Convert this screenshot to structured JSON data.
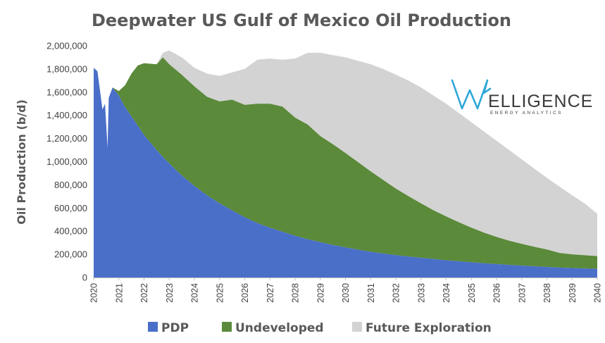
{
  "chart_data": {
    "type": "area",
    "stacked": true,
    "title": "Deepwater US Gulf of Mexico Oil Production",
    "xlabel": "",
    "ylabel": "Oil Production (b/d)",
    "xlim": [
      2020,
      2040
    ],
    "ylim": [
      0,
      2000000
    ],
    "yticks": [
      0,
      200000,
      400000,
      600000,
      800000,
      1000000,
      1200000,
      1400000,
      1600000,
      1800000,
      2000000
    ],
    "ytick_labels": [
      "0",
      "200,000",
      "400,000",
      "600,000",
      "800,000",
      "1,000,000",
      "1,200,000",
      "1,400,000",
      "1,600,000",
      "1,800,000",
      "2,000,000"
    ],
    "xticks": [
      2020,
      2021,
      2022,
      2023,
      2024,
      2025,
      2026,
      2027,
      2028,
      2029,
      2030,
      2031,
      2032,
      2033,
      2034,
      2035,
      2036,
      2037,
      2038,
      2039,
      2040
    ],
    "xtick_labels": [
      "2020",
      "2021",
      "2022",
      "2023",
      "2024",
      "2025",
      "2026",
      "2027",
      "2028",
      "2029",
      "2030",
      "2031",
      "2032",
      "2033",
      "2034",
      "2035",
      "2036",
      "2037",
      "2038",
      "2039",
      "2040"
    ],
    "grid": false,
    "legend_position": "bottom",
    "x": [
      2020.0,
      2020.15,
      2020.35,
      2020.45,
      2020.55,
      2020.6,
      2020.75,
      2021.0,
      2021.25,
      2021.5,
      2021.75,
      2022.0,
      2022.5,
      2022.75,
      2023.0,
      2023.5,
      2024.0,
      2024.5,
      2025.0,
      2025.5,
      2026.0,
      2026.5,
      2027.0,
      2027.5,
      2028.0,
      2028.5,
      2029.0,
      2029.5,
      2030.0,
      2030.5,
      2031.0,
      2031.5,
      2032.0,
      2032.5,
      2033.0,
      2033.5,
      2034.0,
      2034.5,
      2035.0,
      2035.5,
      2036.0,
      2036.5,
      2037.0,
      2037.5,
      2038.0,
      2038.5,
      2039.0,
      2039.5,
      2040.0
    ],
    "series": [
      {
        "name": "PDP",
        "color": "#4a6fc9",
        "values": [
          1810000,
          1780000,
          1450000,
          1500000,
          1120000,
          1550000,
          1640000,
          1570000,
          1470000,
          1390000,
          1310000,
          1230000,
          1100000,
          1040000,
          985000,
          880000,
          790000,
          710000,
          640000,
          580000,
          520000,
          470000,
          430000,
          395000,
          360000,
          330000,
          305000,
          280000,
          260000,
          240000,
          222000,
          207000,
          193000,
          181000,
          170000,
          159000,
          149000,
          140000,
          131000,
          123000,
          116000,
          109000,
          103000,
          97000,
          91000,
          86000,
          82000,
          78000,
          74000
        ]
      },
      {
        "name": "Undeveloped",
        "color": "#5b8a3a",
        "values": [
          0,
          0,
          0,
          0,
          0,
          0,
          0,
          40000,
          190000,
          370000,
          520000,
          620000,
          740000,
          860000,
          855000,
          870000,
          860000,
          850000,
          880000,
          955000,
          970000,
          1030000,
          1070000,
          1080000,
          1020000,
          990000,
          915000,
          870000,
          815000,
          755000,
          695000,
          635000,
          575000,
          521000,
          470000,
          421000,
          378000,
          337000,
          299000,
          265000,
          234000,
          209000,
          187000,
          168000,
          151000,
          126000,
          118000,
          114000,
          111000
        ]
      },
      {
        "name": "Future Exploration",
        "color": "#d3d3d3",
        "values": [
          0,
          0,
          0,
          0,
          0,
          0,
          0,
          0,
          0,
          0,
          0,
          0,
          0,
          40000,
          120000,
          150000,
          160000,
          200000,
          220000,
          235000,
          310000,
          380000,
          390000,
          405000,
          510000,
          620000,
          720000,
          770000,
          825000,
          875000,
          923000,
          958000,
          982000,
          998000,
          1000000,
          990000,
          973000,
          943000,
          910000,
          872000,
          830000,
          782000,
          730000,
          675000,
          618000,
          573000,
          510000,
          448000,
          365000
        ]
      }
    ]
  },
  "logo": {
    "main": "ELLIGENCE",
    "sub": "ENERGY ANALYTICS"
  }
}
